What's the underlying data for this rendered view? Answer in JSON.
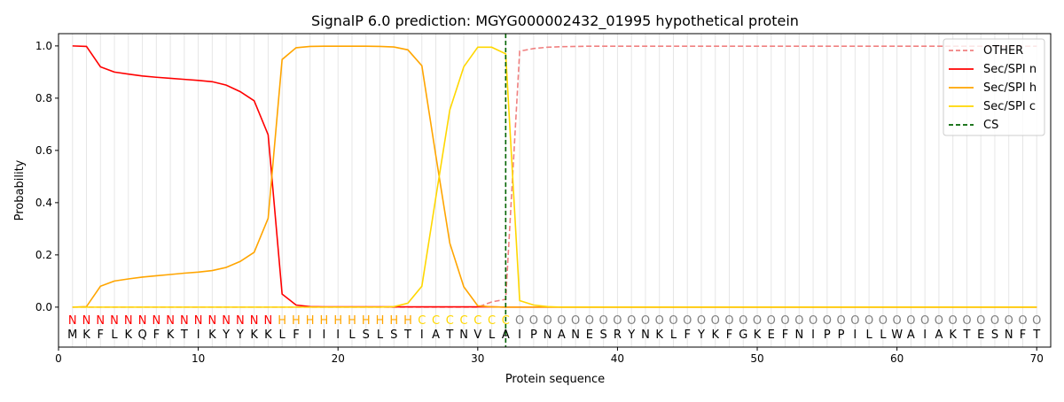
{
  "chart_data": {
    "type": "line",
    "title": "SignalP 6.0 prediction: MGYG000002432_01995 hypothetical protein",
    "xlabel": "Protein sequence",
    "ylabel": "Probability",
    "xlim": [
      0,
      71
    ],
    "ylim": [
      -0.153,
      1.047
    ],
    "xticks": [
      0,
      10,
      20,
      30,
      40,
      50,
      60,
      70
    ],
    "yticks": [
      0.0,
      0.2,
      0.4,
      0.6,
      0.8,
      1.0
    ],
    "ytick_labels": [
      "0.0",
      "0.2",
      "0.4",
      "0.6",
      "0.8",
      "1.0"
    ],
    "legend_position": "top-right",
    "sequence": "MKFLKQFKTIKYYKKLFIIILSLSTIATNVLAIPNANESRYNKLFYKFGKEFNIPPILLWAIAKTESNFT",
    "labels": "NNNNNNNNNNNNNNNHHHHHHHHHHCCCCCCCOOOOOOOOOOOOOOOOOOOOOOOOOOOOOOOOOOOOOO",
    "label_colors": {
      "N": "#ff0000",
      "H": "#ffa500",
      "C": "#ffd700",
      "O": "#808080"
    },
    "cs_position": 32,
    "series": [
      {
        "name": "OTHER",
        "color": "#f08080",
        "dash": true,
        "values": [
          0,
          0,
          0,
          0,
          0,
          0,
          0,
          0,
          0,
          0,
          0,
          0,
          0,
          0,
          0,
          0,
          0,
          0,
          0,
          0,
          0,
          0,
          0,
          0,
          0,
          0,
          0,
          0,
          0,
          0,
          0.02,
          0.03,
          0.98,
          0.99,
          0.995,
          0.997,
          0.998,
          0.999,
          0.999,
          0.999,
          0.999,
          0.999,
          0.999,
          0.999,
          0.999,
          0.999,
          0.999,
          0.999,
          0.999,
          0.999,
          0.999,
          0.999,
          0.999,
          0.999,
          0.999,
          0.999,
          0.999,
          0.999,
          0.999,
          0.999,
          0.999,
          0.999,
          0.999,
          0.999,
          0.999,
          0.999,
          0.999,
          0.999,
          0.999,
          0.999
        ]
      },
      {
        "name": "Sec/SPI n",
        "color": "#ff0000",
        "dash": false,
        "values": [
          1.0,
          0.998,
          0.92,
          0.9,
          0.892,
          0.885,
          0.88,
          0.876,
          0.872,
          0.868,
          0.863,
          0.85,
          0.825,
          0.79,
          0.66,
          0.05,
          0.008,
          0.002,
          0.001,
          0.001,
          0.001,
          0.001,
          0.001,
          0.001,
          0.001,
          0.001,
          0.001,
          0.001,
          0.001,
          0.001,
          0.001,
          0,
          0,
          0,
          0,
          0,
          0,
          0,
          0,
          0,
          0,
          0,
          0,
          0,
          0,
          0,
          0,
          0,
          0,
          0,
          0,
          0,
          0,
          0,
          0,
          0,
          0,
          0,
          0,
          0,
          0,
          0,
          0,
          0,
          0,
          0,
          0,
          0,
          0,
          0
        ]
      },
      {
        "name": "Sec/SPI h",
        "color": "#ffa500",
        "dash": false,
        "values": [
          0,
          0.002,
          0.08,
          0.1,
          0.108,
          0.115,
          0.12,
          0.125,
          0.13,
          0.134,
          0.14,
          0.152,
          0.175,
          0.21,
          0.34,
          0.948,
          0.993,
          0.998,
          0.999,
          0.999,
          0.999,
          0.999,
          0.998,
          0.996,
          0.985,
          0.924,
          0.58,
          0.245,
          0.078,
          0.005,
          0.001,
          0,
          0,
          0,
          0,
          0,
          0,
          0,
          0,
          0,
          0,
          0,
          0,
          0,
          0,
          0,
          0,
          0,
          0,
          0,
          0,
          0,
          0,
          0,
          0,
          0,
          0,
          0,
          0,
          0,
          0,
          0,
          0,
          0,
          0,
          0,
          0,
          0,
          0,
          0
        ]
      },
      {
        "name": "Sec/SPI c",
        "color": "#ffd700",
        "dash": false,
        "values": [
          0,
          0,
          0,
          0,
          0,
          0,
          0,
          0,
          0,
          0,
          0,
          0,
          0,
          0,
          0,
          0,
          0,
          0,
          0,
          0,
          0,
          0,
          0,
          0.002,
          0.015,
          0.08,
          0.42,
          0.755,
          0.92,
          0.995,
          0.995,
          0.97,
          0.025,
          0.008,
          0.002,
          0,
          0,
          0,
          0,
          0,
          0,
          0,
          0,
          0,
          0,
          0,
          0,
          0,
          0,
          0,
          0,
          0,
          0,
          0,
          0,
          0,
          0,
          0,
          0,
          0,
          0,
          0,
          0,
          0,
          0,
          0,
          0,
          0,
          0,
          0
        ]
      }
    ],
    "cs_legend": {
      "name": "CS",
      "color": "#006400"
    }
  }
}
